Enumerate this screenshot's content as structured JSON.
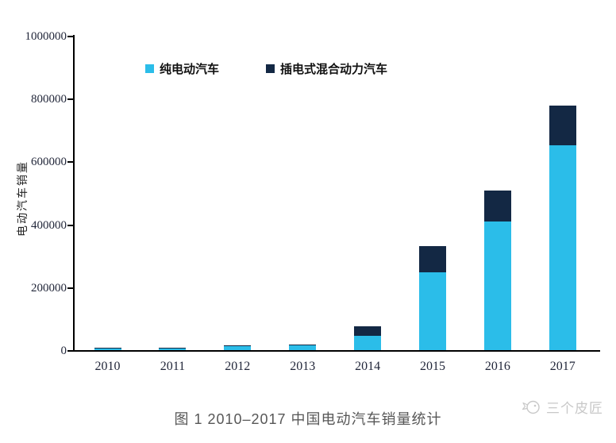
{
  "chart_data": {
    "type": "bar",
    "stacked": true,
    "title": "",
    "categories": [
      "2010",
      "2011",
      "2012",
      "2013",
      "2014",
      "2015",
      "2016",
      "2017"
    ],
    "series": [
      {
        "name": "纯电动汽车",
        "color": "#2BBDE9",
        "values": [
          5000,
          5600,
          11400,
          14600,
          45000,
          247000,
          409000,
          652000
        ]
      },
      {
        "name": "插电式混合动力汽车",
        "color": "#132844",
        "values": [
          2100,
          2600,
          1400,
          3000,
          30000,
          84000,
          98000,
          125000
        ]
      }
    ],
    "xlabel": "",
    "ylabel": "电动汽车销量",
    "ylim": [
      0,
      1000000
    ],
    "yticks": [
      0,
      200000,
      400000,
      600000,
      800000,
      1000000
    ],
    "grid": false,
    "legend_position": "top"
  },
  "caption": "图 1 2010–2017 中国电动汽车销量统计",
  "watermark": {
    "text": "三个皮匠",
    "icon": "sanpijiang-logo"
  },
  "colors": {
    "pure_ev": "#2BBDE9",
    "phev": "#132844",
    "axis": "#000000",
    "tick_label": "#22273A",
    "caption": "#575757",
    "watermark": "#C8C8C8"
  }
}
